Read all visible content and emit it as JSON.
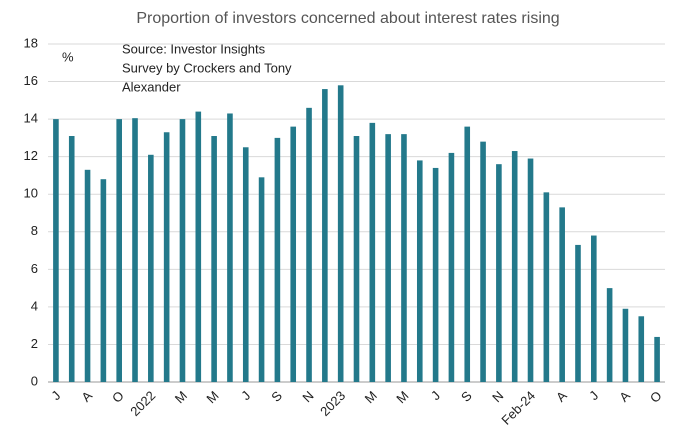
{
  "chart_data": {
    "type": "bar",
    "title": "Proportion of investors concerned about interest rates rising",
    "y_label": "%",
    "annotation": [
      "Source: Investor Insights",
      "Survey by Crockers and Tony",
      "Alexander"
    ],
    "categories": [
      "J",
      null,
      "A",
      null,
      "O",
      null,
      "2022",
      null,
      "M",
      null,
      "M",
      null,
      "J",
      null,
      "S",
      null,
      "N",
      null,
      "2023",
      null,
      "M",
      null,
      "M",
      null,
      "J",
      null,
      "S",
      null,
      "N",
      null,
      "Feb-24",
      null,
      "A",
      null,
      "J",
      null,
      "A",
      null,
      "O"
    ],
    "values": [
      14.0,
      13.1,
      11.3,
      10.8,
      14.0,
      14.05,
      12.1,
      13.3,
      14.0,
      14.4,
      13.1,
      14.3,
      12.5,
      10.9,
      13.0,
      13.6,
      14.6,
      15.6,
      15.8,
      13.1,
      13.8,
      13.2,
      13.2,
      11.8,
      11.4,
      12.2,
      13.6,
      12.8,
      11.6,
      12.3,
      11.9,
      10.1,
      9.3,
      7.3,
      7.8,
      5.0,
      3.9,
      3.5,
      2.4
    ],
    "color": "#23798b",
    "ylim": [
      0,
      18
    ],
    "yticks": [
      0,
      2,
      4,
      6,
      8,
      10,
      12,
      14,
      16,
      18
    ],
    "grid": true
  }
}
